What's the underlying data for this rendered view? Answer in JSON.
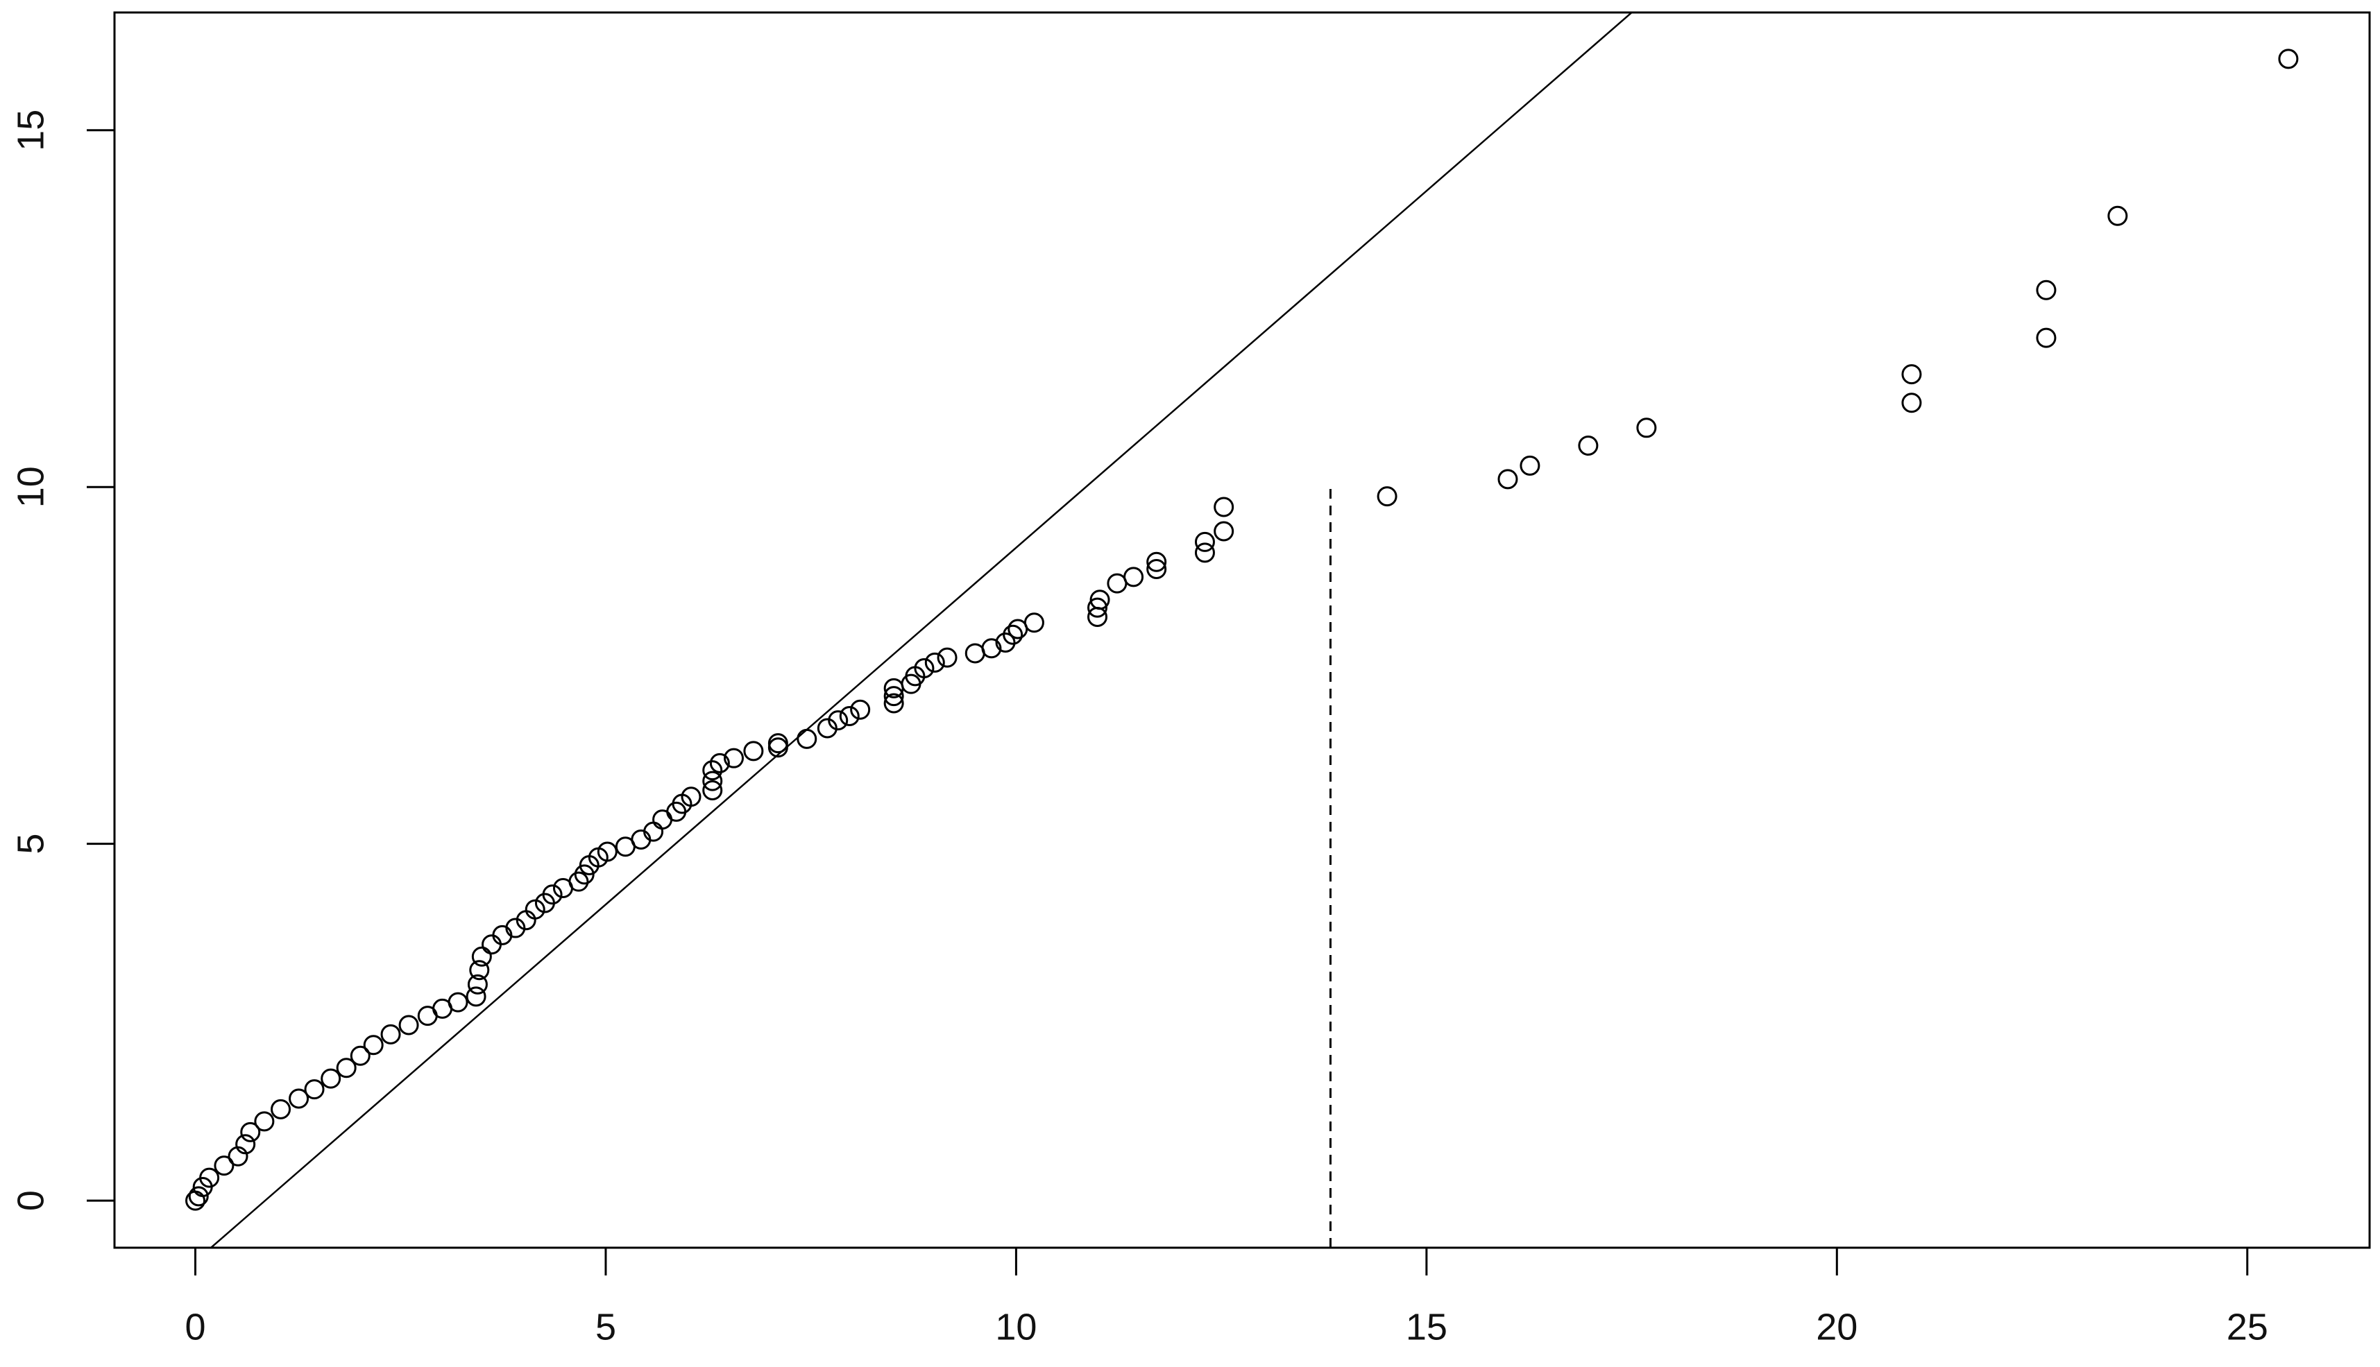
{
  "chart_data": {
    "type": "scatter",
    "x": [
      25.5,
      23.42,
      22.55,
      22.55,
      20.91,
      20.91,
      17.68,
      16.97,
      16.26,
      15.99,
      14.52,
      12.53,
      12.53,
      12.3,
      12.3,
      11.71,
      11.71,
      11.43,
      11.23,
      11.02,
      10.99,
      10.99,
      10.22,
      10.02,
      9.96,
      9.87,
      9.7,
      9.5,
      9.16,
      9.01,
      8.88,
      8.77,
      8.72,
      8.51,
      8.51,
      8.51,
      8.1,
      7.97,
      7.83,
      7.7,
      7.45,
      7.1,
      7.1,
      6.8,
      6.56,
      6.39,
      6.3,
      6.3,
      6.3,
      6.04,
      5.93,
      5.86,
      5.69,
      5.58,
      5.43,
      5.24,
      5.02,
      4.91,
      4.8,
      4.74,
      4.67,
      4.48,
      4.35,
      4.26,
      4.14,
      4.03,
      3.9,
      3.74,
      3.61,
      3.49,
      3.46,
      3.44,
      3.42,
      3.2,
      3.01,
      2.83,
      2.6,
      2.38,
      2.17,
      2.01,
      1.84,
      1.65,
      1.45,
      1.26,
      1.04,
      0.84,
      0.67,
      0.61,
      0.52,
      0.35,
      0.17,
      0.09,
      0.04,
      0.0
    ],
    "values": [
      16.0,
      13.8,
      12.76,
      12.09,
      11.58,
      11.18,
      10.83,
      10.58,
      10.3,
      10.11,
      9.87,
      9.72,
      9.38,
      9.23,
      9.08,
      8.95,
      8.85,
      8.74,
      8.65,
      8.42,
      8.31,
      8.18,
      8.1,
      8.01,
      7.93,
      7.82,
      7.74,
      7.67,
      7.61,
      7.54,
      7.46,
      7.35,
      7.24,
      7.18,
      7.07,
      6.97,
      6.88,
      6.79,
      6.73,
      6.62,
      6.47,
      6.41,
      6.35,
      6.3,
      6.2,
      6.13,
      6.03,
      5.88,
      5.75,
      5.66,
      5.56,
      5.45,
      5.34,
      5.17,
      5.06,
      4.96,
      4.89,
      4.81,
      4.7,
      4.57,
      4.47,
      4.38,
      4.29,
      4.17,
      4.08,
      3.93,
      3.82,
      3.72,
      3.59,
      3.42,
      3.23,
      3.03,
      2.86,
      2.78,
      2.69,
      2.59,
      2.46,
      2.33,
      2.18,
      2.03,
      1.86,
      1.71,
      1.56,
      1.43,
      1.28,
      1.11,
      0.96,
      0.79,
      0.62,
      0.49,
      0.32,
      0.19,
      0.06,
      0.0
    ],
    "color": "#000000",
    "xlim": [
      -0.985,
      26.49
    ],
    "ylim": [
      -0.66,
      16.65
    ],
    "xticks": [
      0,
      5,
      10,
      15,
      20,
      25
    ],
    "yticks": [
      0,
      5,
      10,
      15
    ],
    "reference_line": {
      "intercept": -0.85,
      "slope": 1
    },
    "vline": {
      "x": 13.83,
      "y_top": 10
    }
  }
}
